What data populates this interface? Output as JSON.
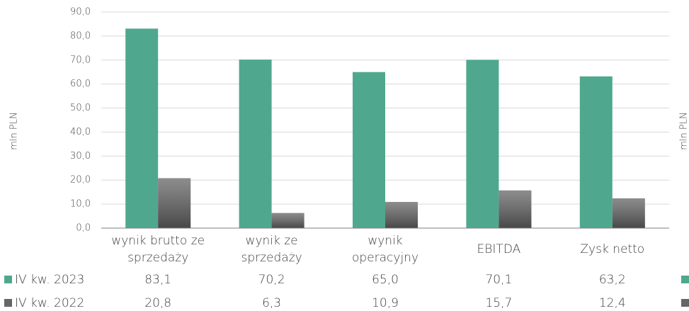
{
  "chart_data": {
    "type": "bar",
    "y_label": "mln PLN",
    "categories": [
      [
        "wynik brutto ze",
        "sprzedaży"
      ],
      [
        "wynik ze",
        "sprzedaży"
      ],
      [
        "wynik",
        "operacyjny"
      ],
      [
        "EBITDA"
      ],
      [
        "Zysk netto"
      ]
    ],
    "series": [
      {
        "name": "IV kw. 2023",
        "color": "#4fa88e",
        "values": [
          83.1,
          70.2,
          65.0,
          70.1,
          63.2
        ],
        "value_labels": [
          "83,1",
          "70,2",
          "65,0",
          "70,1",
          "63,2"
        ]
      },
      {
        "name": "IV kw. 2022",
        "color": "#666666",
        "values": [
          20.8,
          6.3,
          10.9,
          15.7,
          12.4
        ],
        "value_labels": [
          "20,8",
          "6,3",
          "10,9",
          "15,7",
          "12,4"
        ]
      }
    ],
    "ylim": [
      0,
      90
    ],
    "yticks": [
      {
        "value": 0,
        "label": "0,0"
      },
      {
        "value": 10,
        "label": "10,0"
      },
      {
        "value": 20,
        "label": "20,0"
      },
      {
        "value": 30,
        "label": "30,0"
      },
      {
        "value": 40,
        "label": "40,0"
      },
      {
        "value": 50,
        "label": "50,0"
      },
      {
        "value": 60,
        "label": "60,0"
      },
      {
        "value": 70,
        "label": "70,0"
      },
      {
        "value": 80,
        "label": "80,0"
      },
      {
        "value": 90,
        "label": "90,0"
      }
    ],
    "grid": true
  }
}
